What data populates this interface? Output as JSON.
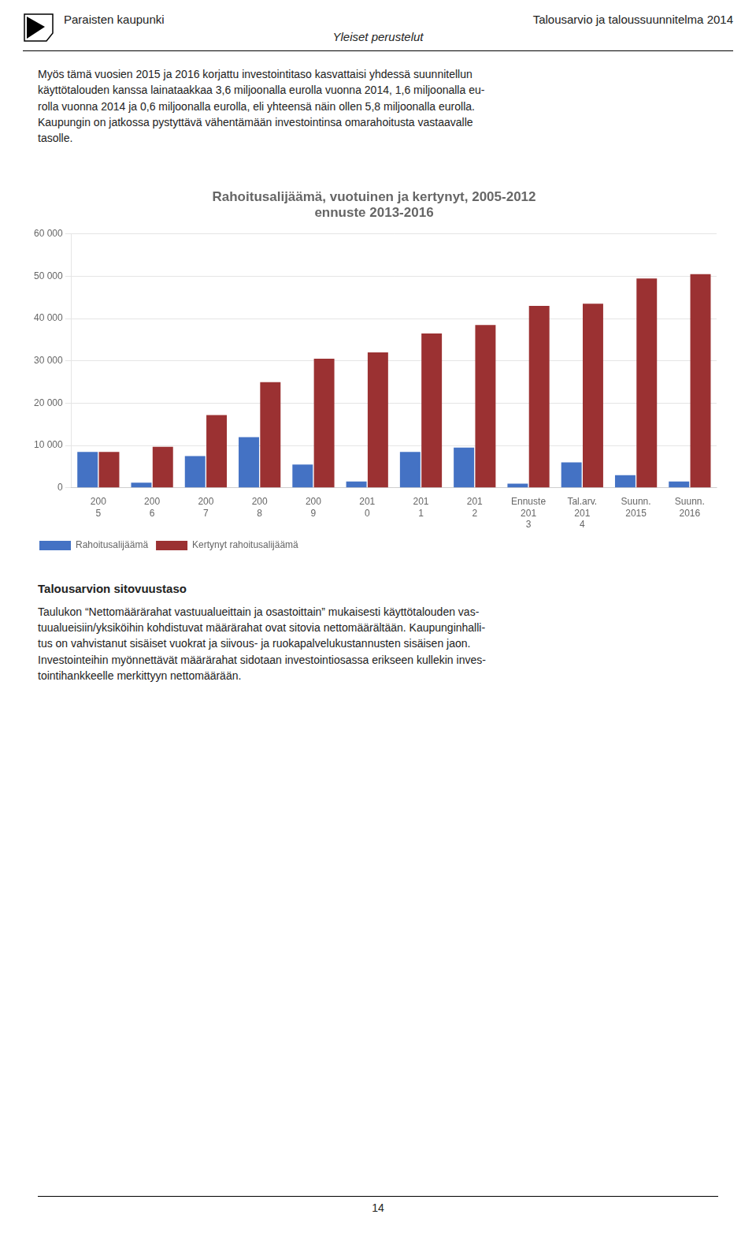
{
  "header_left": "Paraisten kaupunki",
  "header_center": "Yleiset perustelut",
  "header_right": "Talousarvio ja taloussuunnitelma 2014",
  "intro_text": "Myös tämä vuosien 2015 ja 2016 korjattu investointitaso kasvattaisi yhdessä suunnitellun\nkäyttötalouden kanssa lainataakkaa 3,6 miljoonalla eurolla vuonna 2014, 1,6 miljoonalla eu-\nrolla vuonna 2014 ja 0,6 miljoonalla eurolla, eli yhteensä näin ollen 5,8 miljoonalla eurolla.\nKaupungin on jatkossa pystyttävä vähentämään investointinsa omarahoitusta vastaavalle\ntasolle.",
  "footer_title": "Talousarvion sitovuustaso",
  "footer_text": "Taulukon “Nettomäärärahat vastuualueittain ja osastoittain” mukaisesti käyttötalouden vas-\ntuualueisiin/yksiköihin kohdistuvat määrärahat ovat sitovia nettomäärältään. Kaupunginhalli-\ntus on vahvistanut sisäiset vuokrat ja siivous- ja ruokapalvelukustannusten sisäisen jaon.\nInvestointeihin myönnettävät määrärahat sidotaan investointiosassa erikseen kullekin inves-\ntointihankkeelle merkittyyn nettomäärään.",
  "page_number": "14",
  "chart_data": {
    "type": "bar",
    "title": "Rahoitusalijäämä, vuotuinen ja kertynyt, 2005-2012\nennuste 2013-2016",
    "categories": [
      "200\n5",
      "200\n6",
      "200\n7",
      "200\n8",
      "200\n9",
      "201\n0",
      "201\n1",
      "201\n2",
      "Ennuste\n201\n3",
      "Tal.arv.\n201\n4",
      "Suunn.\n2015",
      "Suunn.\n2016"
    ],
    "series": [
      {
        "name": "Rahoitusalijäämä",
        "color": "#4472C4",
        "values": [
          8500,
          1200,
          7500,
          12000,
          5500,
          1500,
          8500,
          9500,
          1000,
          6000,
          3000,
          1500
        ]
      },
      {
        "name": "Kertynyt rahoitusalijäämä",
        "color": "#9B3132",
        "values": [
          8500,
          9700,
          17200,
          25000,
          30500,
          32000,
          36500,
          38500,
          43000,
          43500,
          49500,
          50500
        ]
      }
    ],
    "ylim": [
      0,
      60000
    ],
    "yticks": [
      0,
      {
        "value": 10000,
        "label": "10 000"
      },
      {
        "value": 20000,
        "label": "20 000"
      },
      {
        "value": 30000,
        "label": "30 000"
      },
      {
        "value": 40000,
        "label": "40 000"
      },
      {
        "value": 50000,
        "label": "50 000"
      },
      {
        "value": 60000,
        "label": "60 000"
      }
    ],
    "grid": true,
    "legend": "lower left"
  }
}
